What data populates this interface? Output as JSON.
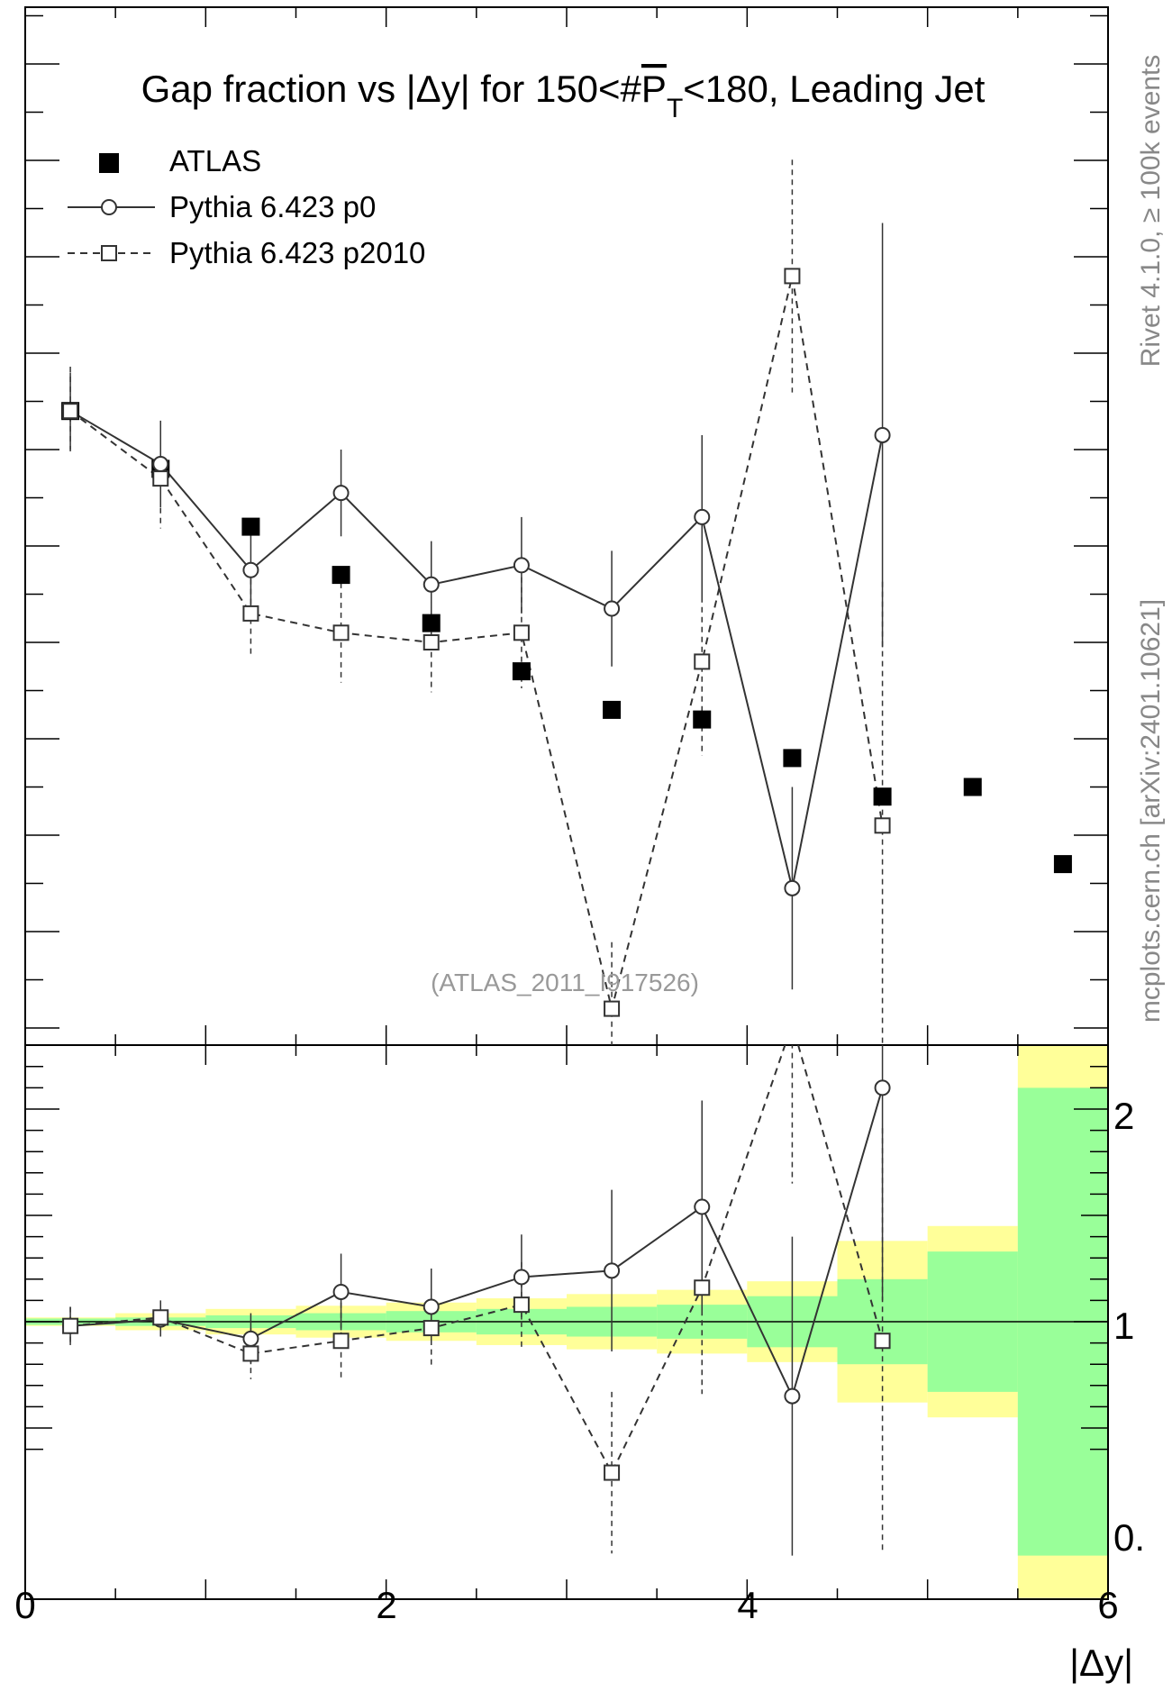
{
  "chart_data": {
    "type": "scatter",
    "title": "Gap fraction vs |Δy| for 150<#P̅T<180, Leading Jet",
    "title_parts": {
      "prefix": "Gap fraction vs |Δy| for 150<#",
      "P": "P",
      "T": "T",
      "suffix": "<180, Leading Jet"
    },
    "xlabel": "|Δy|",
    "xlim": [
      0,
      6
    ],
    "x_ticks": [
      "0",
      "2",
      "4",
      "6"
    ],
    "ratio_ylim": [
      0.4,
      2.3
    ],
    "ratio_ticks": [
      "0.",
      "1",
      "2"
    ],
    "reference_line": 1,
    "side_label_right": "Rivet 4.1.0, ≥ 100k events",
    "side_label_left": "mcplots.cern.ch [arXiv:2401.10621]",
    "analysis_label": "(ATLAS_2011_I917526)",
    "legend": [
      {
        "name": "ATLAS",
        "style": "filled-square"
      },
      {
        "name": "Pythia 6.423 p0",
        "style": "open-circle-solid"
      },
      {
        "name": "Pythia 6.423 p2010",
        "style": "open-square-dashed"
      }
    ],
    "legend_position": "top-left",
    "x": [
      0.25,
      0.75,
      1.25,
      1.75,
      2.25,
      2.75,
      3.25,
      3.75,
      4.25,
      4.75,
      5.25,
      5.75
    ],
    "series": [
      {
        "name": "ATLAS",
        "values": [
          0.74,
          0.68,
          0.62,
          0.57,
          0.52,
          0.47,
          0.43,
          0.42,
          0.38,
          0.34,
          0.35,
          0.27
        ]
      },
      {
        "name": "Pythia 6.423 p0",
        "values": [
          0.74,
          0.685,
          0.575,
          0.655,
          0.56,
          0.58,
          0.535,
          0.63,
          0.245,
          0.715,
          null,
          null
        ]
      },
      {
        "name": "Pythia 6.423 p2010",
        "values": [
          0.74,
          0.67,
          0.53,
          0.51,
          0.5,
          0.51,
          0.12,
          0.48,
          0.88,
          0.31,
          null,
          null
        ]
      }
    ],
    "ratio_series": [
      {
        "name": "Pythia 6.423 p0",
        "values": [
          0.98,
          1.01,
          0.92,
          1.14,
          1.07,
          1.21,
          1.24,
          1.54,
          0.65,
          2.1
        ]
      },
      {
        "name": "Pythia 6.423 p2010",
        "values": [
          0.98,
          1.02,
          0.85,
          0.91,
          0.97,
          1.08,
          0.29,
          1.16,
          2.4,
          0.91
        ]
      }
    ],
    "ratio_band_edges": [
      0,
      0.5,
      1,
      1.5,
      2,
      2.5,
      3,
      3.5,
      4,
      4.5,
      5,
      5.5,
      6
    ],
    "ratio_band_green": [
      0.015,
      0.02,
      0.03,
      0.04,
      0.05,
      0.06,
      0.07,
      0.08,
      0.12,
      0.2,
      0.33,
      1.1
    ],
    "ratio_band_yellow": [
      0.02,
      0.04,
      0.06,
      0.075,
      0.09,
      0.11,
      0.13,
      0.15,
      0.19,
      0.38,
      0.45,
      1.3
    ],
    "colors": {
      "green": "#99ff99",
      "yellow": "#ffff99",
      "data": "#000000",
      "mc": "#333333",
      "label": "#888888"
    }
  }
}
